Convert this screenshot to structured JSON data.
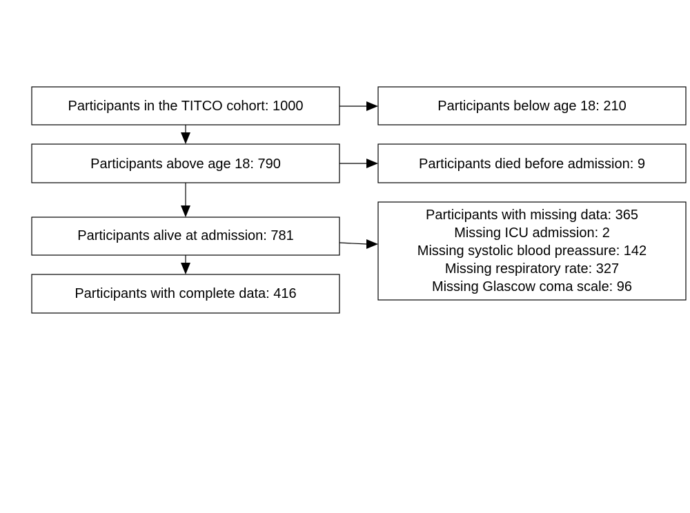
{
  "flowchart": {
    "nodes": {
      "cohort": {
        "lines": [
          "Participants in the TITCO cohort: 1000"
        ]
      },
      "below_18": {
        "lines": [
          "Participants below age 18: 210"
        ]
      },
      "above_18": {
        "lines": [
          "Participants above age 18: 790"
        ]
      },
      "died_before_admission": {
        "lines": [
          "Participants died before admission: 9"
        ]
      },
      "alive_at_admission": {
        "lines": [
          "Participants alive at admission: 781"
        ]
      },
      "missing_data": {
        "lines": [
          "Participants with missing data: 365",
          "Missing ICU admission: 2",
          "Missing systolic blood preassure: 142",
          "Missing respiratory rate: 327",
          "Missing Glascow coma scale: 96"
        ]
      },
      "complete_data": {
        "lines": [
          "Participants with complete data: 416"
        ]
      }
    },
    "edges": [
      {
        "from": "cohort",
        "to": "below_18"
      },
      {
        "from": "cohort",
        "to": "above_18"
      },
      {
        "from": "above_18",
        "to": "died_before_admission"
      },
      {
        "from": "above_18",
        "to": "alive_at_admission"
      },
      {
        "from": "alive_at_admission",
        "to": "missing_data"
      },
      {
        "from": "alive_at_admission",
        "to": "complete_data"
      }
    ]
  }
}
